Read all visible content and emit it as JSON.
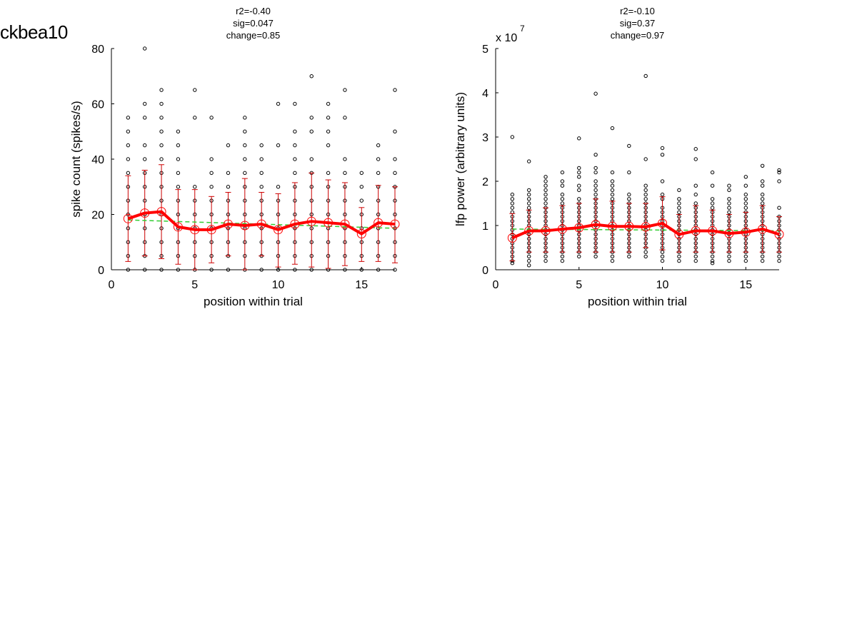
{
  "figure_title": "ckbea10",
  "chart_data": [
    {
      "type": "scatter",
      "title_lines": [
        "r2=-0.40",
        "sig=0.047",
        "change=0.85"
      ],
      "xlabel": "position within trial",
      "ylabel": "spike count (spikes/s)",
      "xlim": [
        0,
        17
      ],
      "ylim": [
        0,
        80
      ],
      "xticks": [
        0,
        5,
        10,
        15
      ],
      "yticks": [
        0,
        20,
        40,
        60,
        80
      ],
      "exponent_label": null,
      "colors": {
        "points": "#000000",
        "mean": "#ff0000",
        "errorbar": "#cc0000",
        "fit": "#33cc33"
      },
      "scatter": [
        {
          "x": 1,
          "y": [
            0,
            5,
            10,
            15,
            20,
            25,
            30,
            35,
            40,
            45,
            50,
            55
          ]
        },
        {
          "x": 2,
          "y": [
            0,
            5,
            10,
            15,
            20,
            25,
            30,
            35,
            40,
            45,
            55,
            60,
            80
          ]
        },
        {
          "x": 3,
          "y": [
            0,
            5,
            10,
            15,
            20,
            25,
            30,
            35,
            40,
            45,
            50,
            55,
            60,
            65
          ]
        },
        {
          "x": 4,
          "y": [
            0,
            5,
            10,
            15,
            20,
            25,
            30,
            35,
            40,
            45,
            50
          ]
        },
        {
          "x": 5,
          "y": [
            0,
            5,
            10,
            15,
            20,
            25,
            30,
            55,
            65
          ]
        },
        {
          "x": 6,
          "y": [
            0,
            5,
            10,
            15,
            20,
            25,
            30,
            35,
            40,
            55
          ]
        },
        {
          "x": 7,
          "y": [
            0,
            5,
            10,
            15,
            20,
            25,
            30,
            35,
            45
          ]
        },
        {
          "x": 8,
          "y": [
            0,
            5,
            10,
            15,
            20,
            25,
            30,
            35,
            40,
            45,
            50,
            55
          ]
        },
        {
          "x": 9,
          "y": [
            0,
            5,
            10,
            15,
            20,
            25,
            30,
            35,
            40,
            45
          ]
        },
        {
          "x": 10,
          "y": [
            0,
            5,
            10,
            15,
            20,
            25,
            30,
            45,
            60
          ]
        },
        {
          "x": 11,
          "y": [
            0,
            5,
            10,
            15,
            20,
            25,
            30,
            35,
            40,
            45,
            50,
            60
          ]
        },
        {
          "x": 12,
          "y": [
            0,
            5,
            10,
            15,
            20,
            25,
            30,
            35,
            40,
            50,
            55,
            70
          ]
        },
        {
          "x": 13,
          "y": [
            0,
            5,
            10,
            15,
            20,
            25,
            30,
            35,
            45,
            50,
            55,
            60
          ]
        },
        {
          "x": 14,
          "y": [
            0,
            5,
            10,
            15,
            20,
            25,
            30,
            35,
            40,
            55,
            65
          ]
        },
        {
          "x": 15,
          "y": [
            0,
            5,
            10,
            15,
            20,
            25,
            30,
            35
          ]
        },
        {
          "x": 16,
          "y": [
            0,
            5,
            10,
            15,
            20,
            25,
            30,
            35,
            40,
            45
          ]
        },
        {
          "x": 17,
          "y": [
            0,
            5,
            10,
            15,
            20,
            25,
            30,
            35,
            40,
            50,
            65
          ]
        }
      ],
      "mean": [
        18.5,
        20.5,
        21,
        15.5,
        14.5,
        14.5,
        16.5,
        16,
        16.5,
        14.5,
        16.5,
        17.5,
        17,
        16.5,
        13,
        17,
        16.5
      ],
      "errorbar_low": [
        3,
        5,
        4,
        2,
        0,
        2.5,
        5,
        0,
        5,
        1,
        2,
        1,
        0.5,
        1.5,
        3,
        3,
        2.5
      ],
      "errorbar_high": [
        34,
        36,
        38,
        29,
        29,
        26.5,
        28,
        33,
        28,
        27.5,
        31.5,
        35,
        32.5,
        31.5,
        22.5,
        30.5,
        30
      ],
      "fit": {
        "x": [
          1,
          17
        ],
        "y": [
          18,
          15
        ]
      }
    },
    {
      "type": "scatter",
      "title_lines": [
        "r2=-0.10",
        "sig=0.37",
        "change=0.97"
      ],
      "xlabel": "position within trial",
      "ylabel": "lfp power (arbitrary units)",
      "xlim": [
        0,
        17
      ],
      "ylim": [
        0,
        5
      ],
      "xticks": [
        0,
        5,
        10,
        15
      ],
      "yticks": [
        0,
        1,
        2,
        3,
        4,
        5
      ],
      "exponent_label": {
        "base": "x 10",
        "power": "7"
      },
      "colors": {
        "points": "#000000",
        "mean": "#ff0000",
        "errorbar": "#cc0000",
        "fit": "#33cc33"
      },
      "scatter": [
        {
          "x": 1,
          "y": [
            0.15,
            0.2,
            0.3,
            0.4,
            0.5,
            0.6,
            0.7,
            0.8,
            0.9,
            1.0,
            1.1,
            1.2,
            1.3,
            1.4,
            1.5,
            1.6,
            1.7,
            3.0
          ]
        },
        {
          "x": 2,
          "y": [
            0.1,
            0.2,
            0.3,
            0.4,
            0.5,
            0.6,
            0.7,
            0.8,
            0.9,
            1.0,
            1.1,
            1.2,
            1.3,
            1.4,
            1.5,
            1.6,
            1.7,
            1.8,
            2.45
          ]
        },
        {
          "x": 3,
          "y": [
            0.2,
            0.3,
            0.4,
            0.5,
            0.6,
            0.7,
            0.8,
            0.9,
            1.0,
            1.1,
            1.2,
            1.3,
            1.4,
            1.5,
            1.6,
            1.7,
            1.8,
            1.9,
            2.0,
            2.1
          ]
        },
        {
          "x": 4,
          "y": [
            0.2,
            0.3,
            0.4,
            0.5,
            0.6,
            0.7,
            0.8,
            0.9,
            1.0,
            1.1,
            1.2,
            1.3,
            1.4,
            1.5,
            1.6,
            1.7,
            1.9,
            2.0,
            2.2
          ]
        },
        {
          "x": 5,
          "y": [
            0.3,
            0.4,
            0.5,
            0.6,
            0.7,
            0.8,
            0.9,
            1.0,
            1.1,
            1.2,
            1.3,
            1.4,
            1.5,
            1.6,
            1.8,
            1.9,
            2.1,
            2.2,
            2.3,
            2.97
          ]
        },
        {
          "x": 6,
          "y": [
            0.3,
            0.4,
            0.5,
            0.6,
            0.7,
            0.8,
            0.9,
            1.0,
            1.1,
            1.2,
            1.3,
            1.4,
            1.5,
            1.6,
            1.7,
            1.8,
            1.9,
            2.0,
            2.2,
            2.3,
            2.6,
            3.98
          ]
        },
        {
          "x": 7,
          "y": [
            0.2,
            0.3,
            0.4,
            0.5,
            0.6,
            0.7,
            0.8,
            0.9,
            1.0,
            1.1,
            1.2,
            1.3,
            1.4,
            1.5,
            1.6,
            1.7,
            1.8,
            1.9,
            2.0,
            2.2,
            3.2
          ]
        },
        {
          "x": 8,
          "y": [
            0.3,
            0.4,
            0.5,
            0.6,
            0.7,
            0.8,
            0.9,
            1.0,
            1.1,
            1.2,
            1.3,
            1.4,
            1.5,
            1.6,
            1.7,
            2.2,
            2.8
          ]
        },
        {
          "x": 9,
          "y": [
            0.3,
            0.4,
            0.5,
            0.6,
            0.7,
            0.8,
            0.9,
            1.0,
            1.1,
            1.2,
            1.3,
            1.4,
            1.5,
            1.6,
            1.7,
            1.8,
            1.9,
            2.5,
            4.38
          ]
        },
        {
          "x": 10,
          "y": [
            0.2,
            0.3,
            0.4,
            0.5,
            0.6,
            0.7,
            0.8,
            0.9,
            1.0,
            1.1,
            1.2,
            1.3,
            1.4,
            1.6,
            1.7,
            2.0,
            2.6,
            2.75
          ]
        },
        {
          "x": 11,
          "y": [
            0.2,
            0.3,
            0.4,
            0.5,
            0.6,
            0.7,
            0.8,
            0.9,
            1.0,
            1.1,
            1.2,
            1.3,
            1.4,
            1.5,
            1.6,
            1.8
          ]
        },
        {
          "x": 12,
          "y": [
            0.2,
            0.3,
            0.4,
            0.5,
            0.6,
            0.7,
            0.8,
            0.9,
            1.0,
            1.1,
            1.2,
            1.3,
            1.4,
            1.5,
            1.7,
            1.9,
            2.5,
            2.73
          ]
        },
        {
          "x": 13,
          "y": [
            0.15,
            0.2,
            0.3,
            0.4,
            0.5,
            0.6,
            0.7,
            0.8,
            0.9,
            1.0,
            1.1,
            1.2,
            1.3,
            1.4,
            1.5,
            1.6,
            1.9,
            2.2
          ]
        },
        {
          "x": 14,
          "y": [
            0.2,
            0.3,
            0.4,
            0.5,
            0.6,
            0.7,
            0.8,
            0.9,
            1.0,
            1.1,
            1.2,
            1.3,
            1.4,
            1.5,
            1.6,
            1.8,
            1.9
          ]
        },
        {
          "x": 15,
          "y": [
            0.2,
            0.3,
            0.4,
            0.5,
            0.6,
            0.7,
            0.8,
            0.9,
            1.0,
            1.1,
            1.2,
            1.3,
            1.4,
            1.5,
            1.6,
            1.7,
            1.9,
            2.1
          ]
        },
        {
          "x": 16,
          "y": [
            0.2,
            0.3,
            0.4,
            0.5,
            0.6,
            0.7,
            0.8,
            0.9,
            1.0,
            1.1,
            1.2,
            1.3,
            1.4,
            1.5,
            1.6,
            1.7,
            1.9,
            2.0,
            2.35
          ]
        },
        {
          "x": 17,
          "y": [
            0.2,
            0.3,
            0.4,
            0.5,
            0.6,
            0.7,
            0.8,
            0.9,
            1.0,
            1.1,
            1.2,
            1.4,
            2.0,
            2.2,
            2.25
          ]
        }
      ],
      "mean": [
        0.72,
        0.88,
        0.88,
        0.92,
        0.95,
        1.02,
        0.98,
        0.98,
        0.97,
        1.05,
        0.8,
        0.88,
        0.88,
        0.82,
        0.85,
        0.92,
        0.8
      ],
      "errorbar_low": [
        0.2,
        0.4,
        0.4,
        0.4,
        0.4,
        0.4,
        0.4,
        0.4,
        0.5,
        0.45,
        0.4,
        0.4,
        0.4,
        0.4,
        0.4,
        0.4,
        0.4
      ],
      "errorbar_high": [
        1.27,
        1.35,
        1.4,
        1.45,
        1.5,
        1.6,
        1.55,
        1.5,
        1.5,
        1.65,
        1.25,
        1.45,
        1.35,
        1.25,
        1.3,
        1.45,
        1.2
      ],
      "fit": {
        "x": [
          1,
          17
        ],
        "y": [
          0.92,
          0.88
        ]
      }
    }
  ]
}
